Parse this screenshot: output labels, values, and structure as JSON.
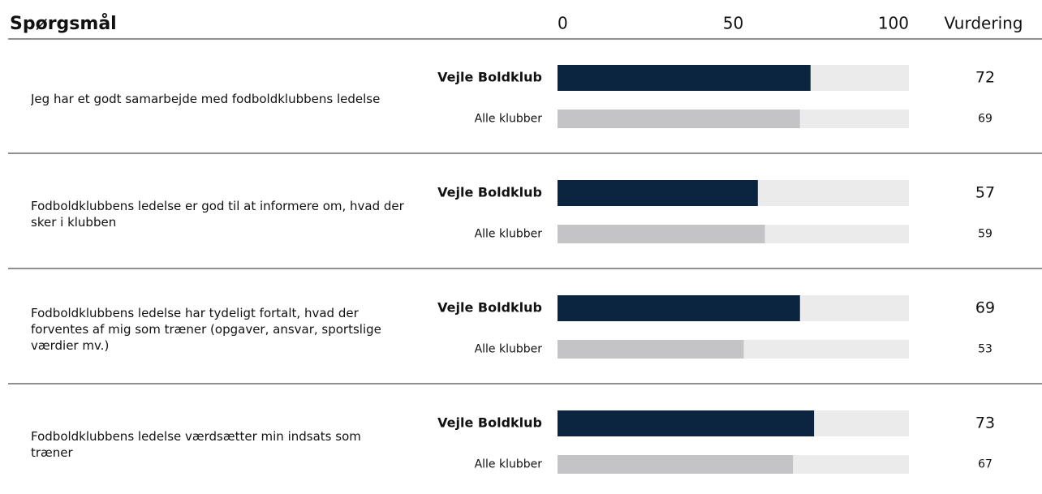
{
  "chart_data": {
    "type": "bar",
    "header": {
      "question": "Spørgsmål",
      "rating": "Vurdering"
    },
    "categories": [
      "Jeg har et godt samarbejde med fodboldklubbens ledelse",
      "Fodboldklubbens ledelse er god til at informere om, hvad der sker i klubben",
      "Fodboldklubbens ledelse har tydeligt fortalt, hvad der forventes af mig som træner (opgaver, ansvar, sportslige værdier mv.)",
      "Fodboldklubbens ledelse værdsætter min indsats som træner"
    ],
    "series": [
      {
        "name": "Vejle Boldklub",
        "color": "#0b2540",
        "values": [
          72,
          57,
          69,
          73
        ]
      },
      {
        "name": "Alle klubber",
        "color": "#c4c4c6",
        "values": [
          69,
          59,
          53,
          67
        ]
      }
    ],
    "track_color": "#ebebeb",
    "xlim": [
      0,
      100
    ],
    "xticks": [
      0,
      50,
      100
    ]
  }
}
